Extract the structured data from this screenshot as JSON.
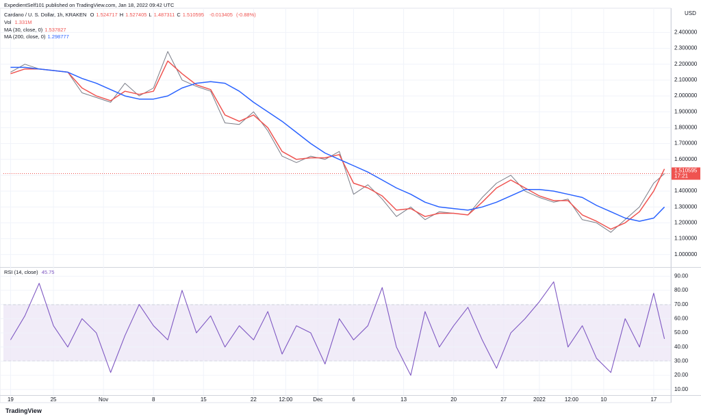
{
  "header": "ExpedientSelf101 published on TradingView.com, Jan 18, 2022 09:42 UTC",
  "footer": "TradingView",
  "chart_data": [
    {
      "type": "line",
      "title": "Cardano / U. S. Dollar, 1h, KRAKEN",
      "ohlc": [
        {
          "label": "O",
          "value": 1.524717
        },
        {
          "label": "H",
          "value": 1.527405
        },
        {
          "label": "L",
          "value": 1.487311
        },
        {
          "label": "C",
          "value": 1.510595
        }
      ],
      "change": -0.013405,
      "change_pct": "(-0.88%)",
      "volume_label": "Vol",
      "volume": "1.331M",
      "currency": "USD",
      "last_price": 1.510595,
      "countdown": "17:21",
      "x": [
        0,
        2,
        4,
        6,
        8,
        10,
        12,
        14,
        16,
        18,
        20,
        22,
        24,
        26,
        28,
        30,
        32,
        34,
        36,
        38,
        40,
        42,
        44,
        46,
        48,
        50,
        52,
        54,
        56,
        58,
        60,
        62,
        64,
        66,
        68,
        70,
        72,
        74,
        76,
        78,
        80,
        82,
        84,
        86,
        88,
        90,
        91.5
      ],
      "values": [
        2.15,
        2.2,
        2.17,
        2.16,
        2.15,
        2.02,
        1.99,
        1.96,
        2.08,
        2.0,
        2.05,
        2.28,
        2.1,
        2.06,
        2.03,
        1.83,
        1.82,
        1.9,
        1.78,
        1.62,
        1.58,
        1.62,
        1.6,
        1.65,
        1.38,
        1.44,
        1.35,
        1.24,
        1.3,
        1.22,
        1.27,
        1.26,
        1.25,
        1.36,
        1.45,
        1.5,
        1.4,
        1.36,
        1.33,
        1.35,
        1.22,
        1.2,
        1.14,
        1.22,
        1.3,
        1.45,
        1.51
      ],
      "color": "#787b86",
      "series": [
        {
          "name": "MA (30, close, 0)",
          "last": 1.537827,
          "color": "#ef5350",
          "values": [
            2.14,
            2.17,
            2.17,
            2.16,
            2.15,
            2.05,
            2.0,
            1.97,
            2.03,
            2.01,
            2.03,
            2.22,
            2.14,
            2.07,
            2.04,
            1.88,
            1.84,
            1.88,
            1.8,
            1.65,
            1.6,
            1.61,
            1.61,
            1.63,
            1.45,
            1.42,
            1.37,
            1.28,
            1.29,
            1.24,
            1.26,
            1.26,
            1.25,
            1.33,
            1.42,
            1.47,
            1.42,
            1.37,
            1.34,
            1.34,
            1.25,
            1.21,
            1.16,
            1.2,
            1.27,
            1.4,
            1.54
          ]
        },
        {
          "name": "MA (200, close, 0)",
          "last": 1.298777,
          "color": "#2962ff",
          "values": [
            2.18,
            2.18,
            2.17,
            2.16,
            2.15,
            2.11,
            2.08,
            2.04,
            2.0,
            1.98,
            1.98,
            2.0,
            2.05,
            2.08,
            2.09,
            2.08,
            2.03,
            1.96,
            1.9,
            1.84,
            1.77,
            1.7,
            1.64,
            1.6,
            1.56,
            1.52,
            1.47,
            1.42,
            1.38,
            1.33,
            1.3,
            1.29,
            1.28,
            1.3,
            1.33,
            1.37,
            1.41,
            1.41,
            1.4,
            1.38,
            1.36,
            1.31,
            1.27,
            1.23,
            1.21,
            1.23,
            1.3
          ]
        }
      ],
      "xlim": [
        -1,
        92.4
      ],
      "xticks": [
        {
          "value": 0,
          "label": "19"
        },
        {
          "value": 6,
          "label": "25"
        },
        {
          "value": 13,
          "label": "Nov"
        },
        {
          "value": 20,
          "label": "8"
        },
        {
          "value": 27,
          "label": "15"
        },
        {
          "value": 34,
          "label": "22"
        },
        {
          "value": 38.5,
          "label": "12:00"
        },
        {
          "value": 43,
          "label": "Dec"
        },
        {
          "value": 48,
          "label": "6"
        },
        {
          "value": 55,
          "label": "13"
        },
        {
          "value": 62,
          "label": "20"
        },
        {
          "value": 69,
          "label": "27"
        },
        {
          "value": 74,
          "label": "2022"
        },
        {
          "value": 78.5,
          "label": "12:00"
        },
        {
          "value": 83,
          "label": "10"
        },
        {
          "value": 90,
          "label": "17"
        }
      ],
      "ylim": [
        0.93,
        2.54
      ],
      "yticks": [
        {
          "value": 1.0,
          "label": "1.000000"
        },
        {
          "value": 1.1,
          "label": "1.100000"
        },
        {
          "value": 1.2,
          "label": "1.200000"
        },
        {
          "value": 1.3,
          "label": "1.300000"
        },
        {
          "value": 1.4,
          "label": "1.400000"
        },
        {
          "value": 1.5,
          "label": "1.500000"
        },
        {
          "value": 1.6,
          "label": "1.600000"
        },
        {
          "value": 1.7,
          "label": "1.700000"
        },
        {
          "value": 1.8,
          "label": "1.800000"
        },
        {
          "value": 1.9,
          "label": "1.900000"
        },
        {
          "value": 2.0,
          "label": "2.000000"
        },
        {
          "value": 2.1,
          "label": "2.100000"
        },
        {
          "value": 2.2,
          "label": "2.200000"
        },
        {
          "value": 2.3,
          "label": "2.300000"
        },
        {
          "value": 2.4,
          "label": "2.400000"
        }
      ],
      "grid": true
    },
    {
      "type": "line",
      "title": "RSI (14, close)",
      "last": 45.75,
      "color": "#7e57c2",
      "values": [
        45,
        62,
        85,
        55,
        40,
        60,
        50,
        22,
        48,
        70,
        55,
        45,
        80,
        50,
        62,
        40,
        55,
        45,
        65,
        35,
        55,
        50,
        28,
        60,
        45,
        55,
        82,
        40,
        20,
        65,
        40,
        55,
        68,
        45,
        25,
        50,
        60,
        72,
        86,
        40,
        55,
        32,
        22,
        60,
        40,
        78,
        45.75
      ],
      "bands": [
        30,
        70
      ],
      "band_color": "#ede7f6",
      "ylim": [
        7,
        95
      ],
      "yticks": [
        {
          "value": 10,
          "label": "10.00"
        },
        {
          "value": 20,
          "label": "20.00"
        },
        {
          "value": 30,
          "label": "30.00"
        },
        {
          "value": 40,
          "label": "40.00"
        },
        {
          "value": 50,
          "label": "50.00"
        },
        {
          "value": 60,
          "label": "60.00"
        },
        {
          "value": 70,
          "label": "70.00"
        },
        {
          "value": 80,
          "label": "80.00"
        },
        {
          "value": 90,
          "label": "90.00"
        }
      ],
      "grid": true
    }
  ]
}
